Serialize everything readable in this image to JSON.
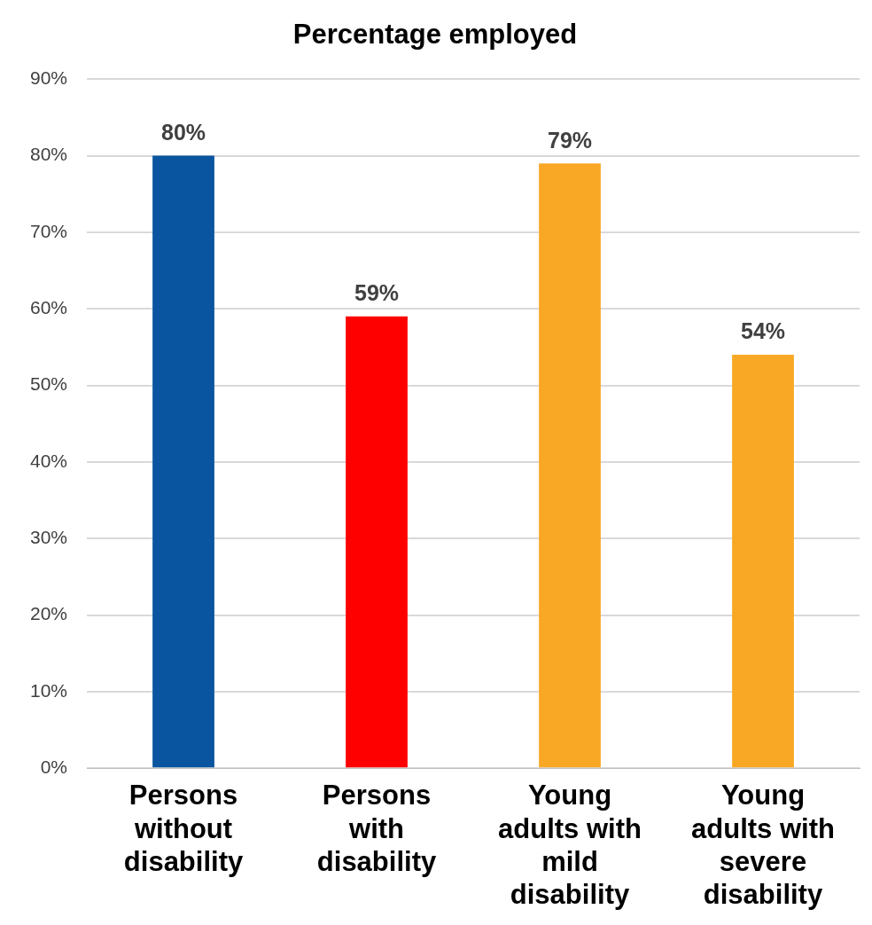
{
  "chart_data": {
    "type": "bar",
    "title": "Percentage employed",
    "categories": [
      "Persons without disability",
      "Persons with disability",
      "Young adults with mild disability",
      "Young adults with severe disability"
    ],
    "values": [
      80,
      59,
      79,
      54
    ],
    "colors": [
      "#0a559f",
      "#ff0000",
      "#f9a825",
      "#f9a825"
    ],
    "value_labels": [
      "80%",
      "59%",
      "79%",
      "54%"
    ],
    "ylim": [
      0,
      90
    ],
    "yticks": [
      {
        "value": 0,
        "label": "0%"
      },
      {
        "value": 10,
        "label": "10%"
      },
      {
        "value": 20,
        "label": "20%"
      },
      {
        "value": 30,
        "label": "30%"
      },
      {
        "value": 40,
        "label": "40%"
      },
      {
        "value": 50,
        "label": "50%"
      },
      {
        "value": 60,
        "label": "60%"
      },
      {
        "value": 70,
        "label": "70%"
      },
      {
        "value": 80,
        "label": "80%"
      },
      {
        "value": 90,
        "label": "90%"
      }
    ],
    "grid": "y",
    "legend": false
  }
}
